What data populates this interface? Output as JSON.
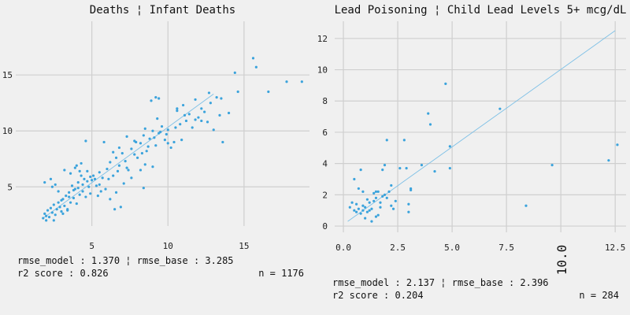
{
  "chart_data": [
    {
      "type": "scatter",
      "title": "Deaths ¦ Infant Deaths",
      "xlim": [
        0.0,
        19.3
      ],
      "ylim": [
        1.5,
        19.8
      ],
      "xticks": [
        5,
        10,
        15
      ],
      "xtick_labels": [
        "5",
        "10",
        "15"
      ],
      "yticks": [
        5,
        10,
        15
      ],
      "ytick_labels": [
        "5",
        "10",
        "15"
      ],
      "grid": true,
      "point_color": "#3ba3dc",
      "line_color": "#7ec0e6",
      "fit_line": [
        [
          1.8,
          2.2
        ],
        [
          13.0,
          13.3
        ]
      ],
      "footer_left_1": "rmse_model : 1.370 ¦ rmse_base : 3.285",
      "footer_left_2": "r2 score : 0.826",
      "footer_right": "n = 1176",
      "points": [
        [
          1.8,
          2.2
        ],
        [
          1.9,
          2.6
        ],
        [
          2.0,
          2.4
        ],
        [
          2.1,
          2.9
        ],
        [
          2.2,
          2.3
        ],
        [
          2.3,
          3.1
        ],
        [
          2.4,
          2.7
        ],
        [
          2.5,
          3.4
        ],
        [
          2.6,
          2.5
        ],
        [
          2.7,
          3.0
        ],
        [
          2.8,
          3.6
        ],
        [
          2.9,
          3.2
        ],
        [
          3.0,
          2.8
        ],
        [
          3.1,
          3.9
        ],
        [
          3.2,
          3.3
        ],
        [
          3.3,
          4.2
        ],
        [
          3.4,
          3.0
        ],
        [
          3.5,
          4.5
        ],
        [
          3.6,
          3.6
        ],
        [
          3.7,
          5.1
        ],
        [
          3.8,
          4.0
        ],
        [
          3.9,
          4.8
        ],
        [
          4.0,
          3.5
        ],
        [
          4.1,
          5.4
        ],
        [
          4.2,
          4.3
        ],
        [
          4.3,
          6.0
        ],
        [
          4.4,
          4.6
        ],
        [
          4.5,
          5.7
        ],
        [
          4.6,
          4.1
        ],
        [
          4.7,
          6.4
        ],
        [
          4.8,
          5.0
        ],
        [
          4.9,
          4.4
        ],
        [
          5.0,
          5.6
        ],
        [
          2.3,
          5.7
        ],
        [
          2.6,
          5.2
        ],
        [
          3.2,
          6.5
        ],
        [
          3.6,
          6.2
        ],
        [
          4.0,
          6.9
        ],
        [
          4.3,
          7.1
        ],
        [
          4.6,
          9.1
        ],
        [
          3.0,
          3.8
        ],
        [
          3.5,
          4.1
        ],
        [
          3.8,
          4.7
        ],
        [
          4.1,
          4.9
        ],
        [
          4.4,
          5.2
        ],
        [
          4.7,
          5.5
        ],
        [
          5.1,
          6.0
        ],
        [
          5.3,
          5.1
        ],
        [
          5.5,
          6.3
        ],
        [
          5.7,
          5.8
        ],
        [
          5.9,
          4.8
        ],
        [
          6.0,
          6.6
        ],
        [
          6.2,
          7.2
        ],
        [
          6.4,
          6.0
        ],
        [
          6.6,
          7.6
        ],
        [
          6.8,
          6.9
        ],
        [
          7.0,
          8.0
        ],
        [
          7.2,
          7.3
        ],
        [
          7.4,
          6.5
        ],
        [
          7.6,
          8.4
        ],
        [
          7.8,
          9.1
        ],
        [
          8.0,
          7.6
        ],
        [
          8.2,
          8.9
        ],
        [
          8.4,
          9.6
        ],
        [
          8.6,
          8.2
        ],
        [
          8.8,
          9.3
        ],
        [
          9.0,
          10.0
        ],
        [
          9.2,
          8.7
        ],
        [
          9.4,
          9.8
        ],
        [
          9.6,
          10.4
        ],
        [
          9.8,
          9.2
        ],
        [
          10.0,
          10.1
        ],
        [
          10.2,
          8.5
        ],
        [
          10.4,
          9.0
        ],
        [
          10.6,
          11.8
        ],
        [
          10.8,
          10.6
        ],
        [
          11.0,
          12.3
        ],
        [
          11.2,
          10.9
        ],
        [
          11.4,
          11.5
        ],
        [
          11.6,
          10.3
        ],
        [
          11.8,
          12.8
        ],
        [
          12.0,
          11.2
        ],
        [
          12.2,
          12.0
        ],
        [
          12.4,
          11.7
        ],
        [
          12.6,
          10.8
        ],
        [
          12.8,
          12.5
        ],
        [
          13.0,
          10.1
        ],
        [
          13.2,
          13.0
        ],
        [
          13.4,
          11.4
        ],
        [
          13.6,
          9.0
        ],
        [
          14.0,
          11.6
        ],
        [
          14.4,
          15.2
        ],
        [
          14.6,
          13.5
        ],
        [
          15.6,
          16.5
        ],
        [
          15.8,
          15.7
        ],
        [
          16.6,
          13.5
        ],
        [
          17.8,
          14.4
        ],
        [
          18.8,
          14.4
        ],
        [
          9.4,
          12.9
        ],
        [
          9.2,
          13.0
        ],
        [
          8.9,
          12.7
        ],
        [
          10.6,
          12.0
        ],
        [
          12.7,
          13.4
        ],
        [
          9.0,
          6.8
        ],
        [
          8.5,
          7.0
        ],
        [
          8.2,
          6.5
        ],
        [
          7.6,
          5.8
        ],
        [
          7.1,
          5.3
        ],
        [
          6.6,
          4.5
        ],
        [
          6.2,
          3.9
        ],
        [
          6.9,
          3.2
        ],
        [
          6.5,
          3.0
        ],
        [
          8.4,
          4.9
        ],
        [
          6.8,
          8.5
        ],
        [
          7.3,
          9.5
        ],
        [
          5.8,
          9.0
        ],
        [
          6.4,
          8.1
        ],
        [
          7.9,
          9.0
        ],
        [
          8.5,
          10.2
        ],
        [
          9.3,
          11.1
        ],
        [
          10.0,
          8.9
        ],
        [
          10.9,
          9.2
        ],
        [
          11.8,
          11.0
        ],
        [
          12.2,
          10.9
        ],
        [
          13.5,
          12.9
        ],
        [
          2.0,
          2.0
        ],
        [
          2.5,
          2.0
        ],
        [
          3.1,
          2.6
        ],
        [
          3.4,
          2.9
        ],
        [
          1.9,
          5.4
        ],
        [
          2.4,
          5.0
        ],
        [
          2.8,
          4.6
        ],
        [
          4.9,
          5.9
        ],
        [
          5.4,
          4.2
        ],
        [
          5.6,
          4.6
        ],
        [
          5.2,
          5.7
        ],
        [
          3.9,
          6.7
        ],
        [
          4.2,
          6.4
        ],
        [
          5.5,
          5.2
        ],
        [
          6.1,
          5.7
        ],
        [
          6.7,
          6.4
        ],
        [
          7.3,
          6.7
        ],
        [
          7.8,
          7.9
        ],
        [
          8.3,
          8.0
        ],
        [
          8.7,
          8.6
        ],
        [
          9.1,
          9.4
        ],
        [
          9.5,
          9.9
        ],
        [
          9.9,
          9.7
        ],
        [
          10.5,
          10.3
        ],
        [
          11.1,
          11.4
        ]
      ]
    },
    {
      "type": "scatter",
      "title": "Lead Poisoning ¦ Child Lead Levels 5+ mcg/dL",
      "xlim": [
        -0.4,
        13.0
      ],
      "ylim": [
        -0.4,
        13.1
      ],
      "xticks": [
        0.0,
        2.5,
        5.0,
        7.5,
        10.0,
        12.5
      ],
      "xtick_labels": [
        "0.0",
        "2.5",
        "5.0",
        "7.5",
        "10.0",
        "12.5"
      ],
      "yticks": [
        0,
        2,
        4,
        6,
        8,
        10,
        12
      ],
      "ytick_labels": [
        "0",
        "2",
        "4",
        "6",
        "8",
        "10",
        "12"
      ],
      "rotated_tick": "10.0",
      "grid": true,
      "point_color": "#3ba3dc",
      "line_color": "#7ec0e6",
      "fit_line": [
        [
          0.2,
          0.3
        ],
        [
          12.5,
          12.5
        ]
      ],
      "footer_left_1": "rmse_model : 2.137 ¦ rmse_base : 2.396",
      "footer_left_2": "r2 score : 0.204",
      "footer_right": "n = 284",
      "points": [
        [
          0.3,
          1.2
        ],
        [
          0.5,
          1.0
        ],
        [
          0.6,
          1.4
        ],
        [
          0.7,
          1.1
        ],
        [
          0.8,
          0.8
        ],
        [
          0.9,
          1.3
        ],
        [
          1.0,
          1.2
        ],
        [
          1.1,
          0.9
        ],
        [
          1.2,
          1.5
        ],
        [
          1.3,
          1.1
        ],
        [
          1.4,
          1.6
        ],
        [
          1.5,
          1.8
        ],
        [
          1.6,
          2.2
        ],
        [
          1.7,
          1.5
        ],
        [
          1.8,
          1.9
        ],
        [
          1.9,
          2.0
        ],
        [
          2.0,
          1.8
        ],
        [
          2.1,
          2.2
        ],
        [
          2.2,
          1.3
        ],
        [
          2.3,
          1.1
        ],
        [
          0.5,
          3.0
        ],
        [
          0.8,
          3.6
        ],
        [
          0.9,
          2.2
        ],
        [
          0.7,
          2.4
        ],
        [
          1.0,
          0.5
        ],
        [
          1.3,
          0.3
        ],
        [
          1.5,
          0.6
        ],
        [
          1.8,
          3.6
        ],
        [
          1.9,
          3.9
        ],
        [
          2.0,
          5.5
        ],
        [
          2.8,
          5.5
        ],
        [
          3.1,
          2.4
        ],
        [
          3.1,
          2.3
        ],
        [
          3.0,
          1.4
        ],
        [
          3.0,
          0.9
        ],
        [
          3.6,
          3.9
        ],
        [
          3.9,
          7.2
        ],
        [
          4.0,
          6.5
        ],
        [
          4.2,
          3.5
        ],
        [
          4.7,
          9.1
        ],
        [
          4.9,
          5.1
        ],
        [
          4.9,
          3.7
        ],
        [
          7.2,
          7.5
        ],
        [
          8.4,
          1.3
        ],
        [
          9.6,
          3.9
        ],
        [
          12.2,
          4.2
        ],
        [
          12.6,
          5.2
        ],
        [
          0.4,
          1.5
        ],
        [
          0.6,
          0.9
        ],
        [
          1.1,
          1.7
        ],
        [
          1.6,
          0.7
        ],
        [
          1.4,
          2.1
        ],
        [
          2.2,
          2.6
        ],
        [
          2.4,
          1.6
        ],
        [
          1.2,
          1.0
        ],
        [
          0.9,
          1.0
        ],
        [
          1.7,
          1.2
        ],
        [
          2.6,
          3.7
        ],
        [
          2.9,
          3.7
        ],
        [
          1.5,
          2.2
        ]
      ]
    }
  ]
}
